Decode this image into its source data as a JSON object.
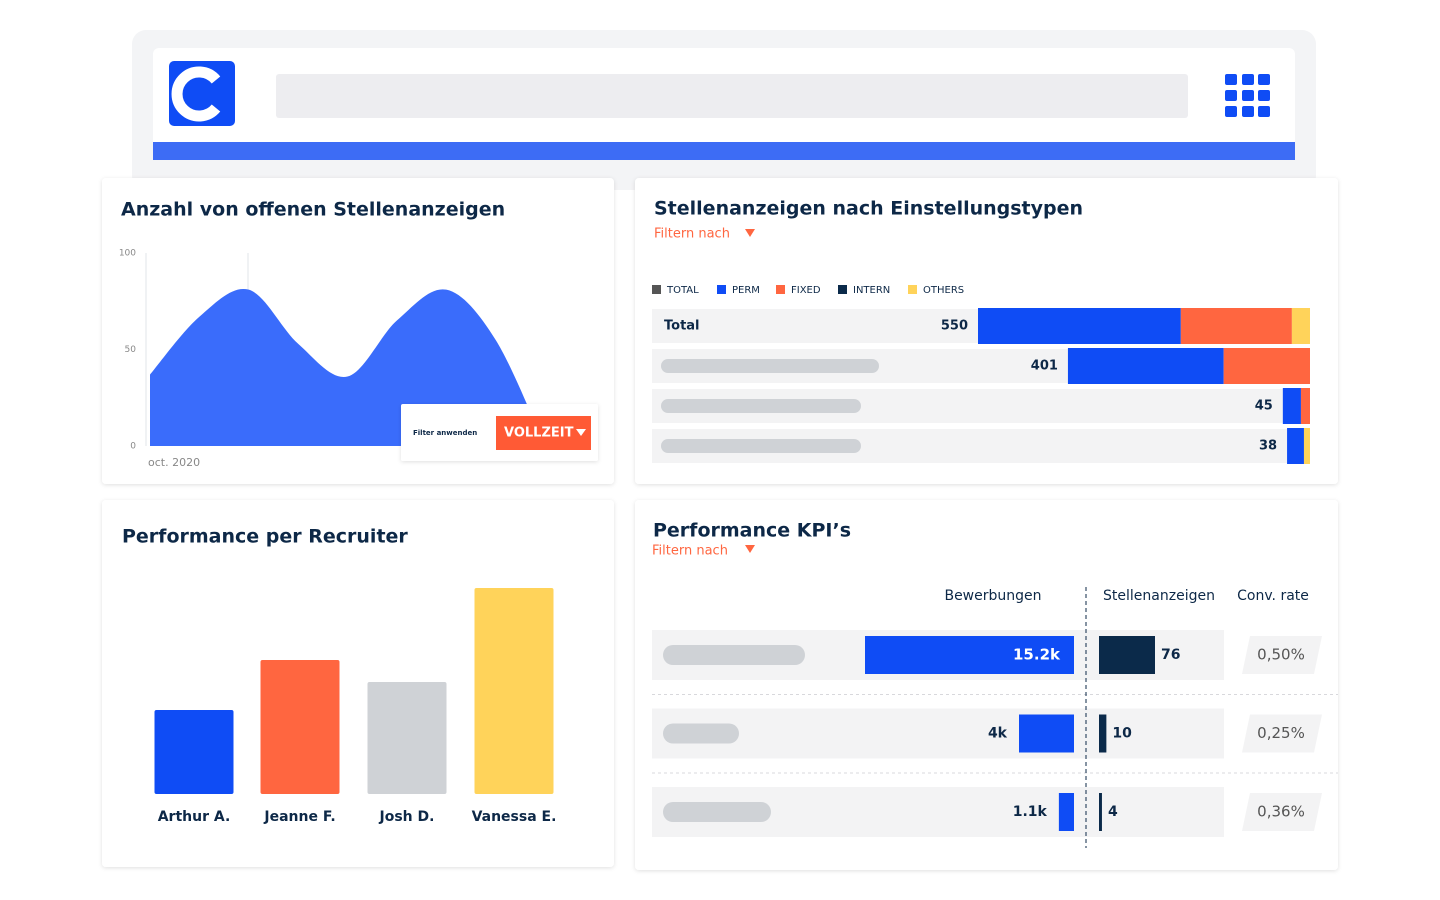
{
  "chart_data": [
    {
      "type": "area",
      "title": "Anzahl von offenen Stellenanzeigen",
      "categories": [
        "oct. 2020",
        null,
        null,
        null,
        null,
        null,
        null,
        null,
        null
      ],
      "values": [
        37,
        67,
        81,
        53,
        36,
        65,
        81,
        55,
        0
      ],
      "color": "#3a6cfb",
      "ylim": [
        0,
        100
      ],
      "yticks": [
        0,
        50,
        100
      ]
    },
    {
      "type": "stacked-bar",
      "orientation": "horizontal",
      "title": "Stellenanzeigen nach Einstellungstypen",
      "subtitle": "Filtern nach",
      "categories": [
        "Total",
        null,
        null,
        null
      ],
      "xlim": [
        0,
        550
      ],
      "series": [
        {
          "name": "TOTAL",
          "color": "#555555",
          "values": [
            550,
            401,
            45,
            38
          ]
        },
        {
          "name": "PERM",
          "color": "#0f4cf5",
          "values": [
            336,
            258,
            30,
            28
          ]
        },
        {
          "name": "FIXED",
          "color": "#ff6640",
          "values": [
            184,
            143,
            15,
            0
          ]
        },
        {
          "name": "INTERN",
          "color": "#0b2a4a",
          "values": [
            0,
            0,
            0,
            0
          ]
        },
        {
          "name": "OTHERS",
          "color": "#ffd35a",
          "values": [
            30,
            0,
            0,
            10
          ]
        }
      ]
    },
    {
      "type": "bar",
      "title": "Performance per Recruiter",
      "categories": [
        "Arthur A.",
        "Jeanne F.",
        "Josh D.",
        "Vanessa E."
      ],
      "values": [
        84,
        134,
        112,
        206
      ],
      "colors": [
        "#0f4cf5",
        "#ff6640",
        "#cfd2d6",
        "#ffd35a"
      ],
      "ylim": [
        0,
        206
      ]
    },
    {
      "type": "kpi-table",
      "title": "Performance KPI’s",
      "subtitle": "Filtern nach",
      "categories": [
        null,
        null,
        null
      ],
      "series": [
        {
          "name": "Bewerbungen",
          "color": "#0f4cf5",
          "xlim": [
            0,
            15200
          ],
          "values": [
            15200,
            4000,
            1100
          ],
          "value_labels": [
            "15.2k",
            "4k",
            "1.1k"
          ]
        },
        {
          "name": "Stellenanzeigen",
          "color": "#0b2a4a",
          "xlim": [
            0,
            76
          ],
          "values": [
            76,
            10,
            4
          ]
        },
        {
          "name": "Conv. rate",
          "values": [
            0.5,
            0.25,
            0.36
          ],
          "value_labels": [
            "0,50%",
            "0,25%",
            "0,36%"
          ]
        }
      ]
    }
  ],
  "filter_popup": {
    "label": "Filter anwenden",
    "button": "VOLLZEIT"
  }
}
